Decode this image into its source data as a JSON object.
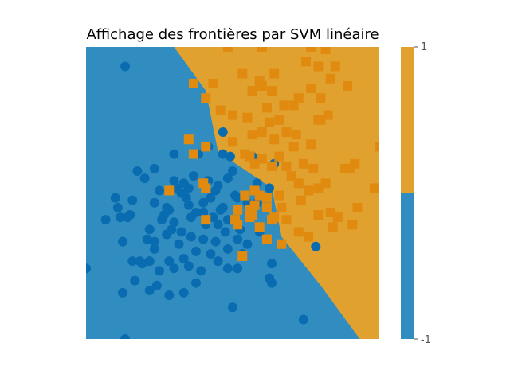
{
  "chart_data": {
    "type": "scatter",
    "title": "Affichage des frontières par SVM linéaire",
    "xlabel": "",
    "ylabel": "",
    "axes_visible": false,
    "xlim": [
      -3,
      3
    ],
    "ylim": [
      -3,
      3
    ],
    "grid": false,
    "decision_boundary": {
      "description_free": true,
      "points": [
        [
          -1.2,
          3.0
        ],
        [
          -0.55,
          2.1
        ],
        [
          -0.3,
          0.85
        ],
        [
          0.8,
          0.1
        ],
        [
          1.0,
          -0.9
        ],
        [
          1.8,
          -1.9
        ],
        [
          2.6,
          -3.0
        ]
      ],
      "region_colors": {
        "-1": "#318dc0",
        "1": "#e1a12f"
      }
    },
    "colorbar": {
      "ticks": [
        "1",
        "-1"
      ],
      "colors": [
        "#e1a12f",
        "#318dc0"
      ]
    },
    "series": [
      {
        "marker": "circle",
        "color": "#0a6cb0",
        "class": -1,
        "points": [
          [
            -2.2,
            2.6
          ],
          [
            -0.2,
            1.25
          ],
          [
            -0.5,
            0.95
          ],
          [
            -0.05,
            0.75
          ],
          [
            -0.7,
            0.8
          ],
          [
            -1.2,
            0.8
          ],
          [
            -0.1,
            0.3
          ],
          [
            0.0,
            0.45
          ],
          [
            -0.5,
            0.25
          ],
          [
            -1.5,
            0.05
          ],
          [
            -1.8,
            0.3
          ],
          [
            -1.6,
            0.5
          ],
          [
            -0.8,
            0.35
          ],
          [
            -1.0,
            0.2
          ],
          [
            -1.2,
            0.25
          ],
          [
            -1.6,
            -0.2
          ],
          [
            -1.35,
            -0.3
          ],
          [
            -0.9,
            0.1
          ],
          [
            -0.3,
            0.15
          ],
          [
            -0.45,
            -0.1
          ],
          [
            -0.6,
            -0.2
          ],
          [
            -0.95,
            -0.1
          ],
          [
            -1.05,
            0.0
          ],
          [
            -2.05,
            -0.15
          ],
          [
            -2.35,
            -0.3
          ],
          [
            -2.4,
            -0.1
          ],
          [
            -2.3,
            -0.5
          ],
          [
            -1.95,
            0.45
          ],
          [
            -1.3,
            -0.35
          ],
          [
            -0.2,
            -0.3
          ],
          [
            -0.4,
            -0.5
          ],
          [
            -0.85,
            -0.5
          ],
          [
            -0.55,
            -0.65
          ],
          [
            -0.1,
            -0.55
          ],
          [
            0.3,
            -0.2
          ],
          [
            0.5,
            -0.2
          ],
          [
            0.75,
            0.1
          ],
          [
            0.4,
            0.75
          ],
          [
            0.85,
            0.6
          ],
          [
            0.5,
            0.2
          ],
          [
            -1.05,
            -0.8
          ],
          [
            -1.25,
            -0.75
          ],
          [
            -1.45,
            -0.55
          ],
          [
            -1.6,
            -1.0
          ],
          [
            -1.35,
            -0.85
          ],
          [
            -1.1,
            -1.05
          ],
          [
            -0.85,
            -0.9
          ],
          [
            -0.6,
            -0.95
          ],
          [
            -0.35,
            -1.0
          ],
          [
            -0.1,
            -1.15
          ],
          [
            0.1,
            -0.95
          ],
          [
            0.3,
            -1.05
          ],
          [
            0.55,
            -0.8
          ],
          [
            0.8,
            -1.45
          ],
          [
            0.2,
            -1.25
          ],
          [
            -0.45,
            -1.25
          ],
          [
            -0.75,
            -1.2
          ],
          [
            -1.0,
            -1.35
          ],
          [
            -1.3,
            -1.4
          ],
          [
            -1.6,
            -1.15
          ],
          [
            -1.7,
            -1.4
          ],
          [
            -1.75,
            -0.95
          ],
          [
            -2.25,
            -1.0
          ],
          [
            -2.6,
            -0.55
          ],
          [
            -1.2,
            -1.55
          ],
          [
            -0.3,
            -1.4
          ],
          [
            -0.1,
            -1.55
          ],
          [
            0.1,
            -1.55
          ],
          [
            -0.65,
            -1.6
          ],
          [
            -0.9,
            -1.5
          ],
          [
            -1.5,
            -1.6
          ],
          [
            -1.9,
            -1.4
          ],
          [
            -1.85,
            -1.45
          ],
          [
            -2.05,
            -1.4
          ],
          [
            -0.75,
            -1.85
          ],
          [
            -1.3,
            -2.1
          ],
          [
            -1.0,
            -2.05
          ],
          [
            -1.55,
            -1.9
          ],
          [
            -1.7,
            -2.0
          ],
          [
            -2.25,
            -2.05
          ],
          [
            -2.0,
            -1.8
          ],
          [
            -3.0,
            -1.55
          ],
          [
            0.0,
            -2.35
          ],
          [
            1.7,
            -1.1
          ],
          [
            0.75,
            -1.75
          ],
          [
            0.8,
            -1.85
          ],
          [
            1.45,
            -2.6
          ],
          [
            -0.6,
            -0.4
          ],
          [
            -1.2,
            -0.6
          ],
          [
            -0.9,
            -0.25
          ],
          [
            -1.7,
            -0.75
          ],
          [
            -2.1,
            -0.45
          ],
          [
            -2.15,
            -0.5
          ],
          [
            0.1,
            -0.1
          ],
          [
            -0.35,
            0.05
          ],
          [
            -0.25,
            -0.35
          ],
          [
            -0.75,
            -0.4
          ],
          [
            -1.15,
            0.1
          ],
          [
            -1.4,
            -0.45
          ],
          [
            -2.2,
            -3.0
          ],
          [
            -0.3,
            -0.65
          ],
          [
            0.05,
            -0.05
          ],
          [
            0.15,
            -0.75
          ],
          [
            -0.15,
            -0.8
          ],
          [
            -0.2,
            0.8
          ]
        ]
      },
      {
        "marker": "square",
        "color": "#e08b10",
        "class": 1,
        "points": [
          [
            -0.1,
            3.0
          ],
          [
            0.6,
            3.0
          ],
          [
            1.6,
            3.0
          ],
          [
            1.9,
            2.95
          ],
          [
            1.75,
            2.6
          ],
          [
            1.5,
            2.7
          ],
          [
            1.6,
            2.15
          ],
          [
            2.1,
            2.6
          ],
          [
            0.2,
            2.45
          ],
          [
            0.55,
            2.3
          ],
          [
            0.85,
            2.45
          ],
          [
            0.8,
            2.1
          ],
          [
            -0.8,
            2.25
          ],
          [
            -0.4,
            2.25
          ],
          [
            -0.55,
            1.95
          ],
          [
            -0.25,
            1.7
          ],
          [
            0.0,
            1.6
          ],
          [
            0.3,
            1.55
          ],
          [
            0.6,
            2.2
          ],
          [
            0.4,
            2.1
          ],
          [
            0.7,
            1.75
          ],
          [
            1.05,
            1.8
          ],
          [
            1.35,
            1.95
          ],
          [
            1.25,
            1.8
          ],
          [
            1.8,
            1.95
          ],
          [
            2.0,
            2.35
          ],
          [
            2.35,
            2.2
          ],
          [
            1.8,
            1.5
          ],
          [
            1.95,
            1.6
          ],
          [
            1.3,
            1.2
          ],
          [
            0.95,
            1.5
          ],
          [
            0.75,
            1.45
          ],
          [
            0.6,
            1.25
          ],
          [
            0.85,
            1.1
          ],
          [
            1.1,
            1.25
          ],
          [
            0.0,
            1.05
          ],
          [
            0.4,
            1.2
          ],
          [
            1.25,
            0.95
          ],
          [
            0.25,
            0.8
          ],
          [
            0.35,
            0.75
          ],
          [
            0.6,
            0.7
          ],
          [
            0.95,
            0.75
          ],
          [
            1.6,
            1.0
          ],
          [
            1.75,
            1.5
          ],
          [
            1.45,
            0.6
          ],
          [
            1.1,
            0.55
          ],
          [
            0.8,
            0.55
          ],
          [
            0.45,
            0.6
          ],
          [
            1.2,
            0.35
          ],
          [
            1.35,
            0.2
          ],
          [
            2.3,
            0.5
          ],
          [
            2.9,
            0.1
          ],
          [
            3.0,
            0.95
          ],
          [
            1.65,
            0.5
          ],
          [
            1.9,
            0.2
          ],
          [
            1.75,
            0.1
          ],
          [
            1.55,
            0.05
          ],
          [
            0.95,
            -0.05
          ],
          [
            0.7,
            -0.1
          ],
          [
            1.0,
            -0.3
          ],
          [
            0.85,
            -0.5
          ],
          [
            0.8,
            -0.55
          ],
          [
            1.1,
            -0.55
          ],
          [
            1.35,
            -0.8
          ],
          [
            1.55,
            -0.9
          ],
          [
            2.0,
            -0.4
          ],
          [
            2.05,
            -0.7
          ],
          [
            2.55,
            -0.3
          ],
          [
            2.15,
            -0.5
          ],
          [
            2.45,
            -0.65
          ],
          [
            1.4,
            -0.15
          ],
          [
            1.75,
            -0.45
          ],
          [
            0.05,
            -0.55
          ],
          [
            0.45,
            -0.25
          ],
          [
            1.0,
            -1.05
          ],
          [
            0.7,
            -0.95
          ],
          [
            0.55,
            -0.7
          ],
          [
            0.2,
            -1.3
          ],
          [
            -0.55,
            0.95
          ],
          [
            -0.8,
            0.8
          ],
          [
            -0.6,
            0.2
          ],
          [
            -0.9,
            1.1
          ],
          [
            -0.55,
            0.1
          ],
          [
            -1.3,
            0.05
          ],
          [
            0.7,
            -0.3
          ],
          [
            0.25,
            -0.05
          ],
          [
            0.35,
            -0.35
          ],
          [
            0.4,
            -0.4
          ],
          [
            0.1,
            -0.35
          ],
          [
            0.1,
            -0.65
          ],
          [
            -0.55,
            -0.55
          ],
          [
            0.35,
            -0.5
          ],
          [
            0.4,
            -0.45
          ],
          [
            0.55,
            -0.05
          ],
          [
            0.45,
            0.05
          ],
          [
            2.4,
            0.5
          ],
          [
            2.5,
            0.6
          ],
          [
            2.35,
            0.5
          ]
        ]
      }
    ]
  }
}
